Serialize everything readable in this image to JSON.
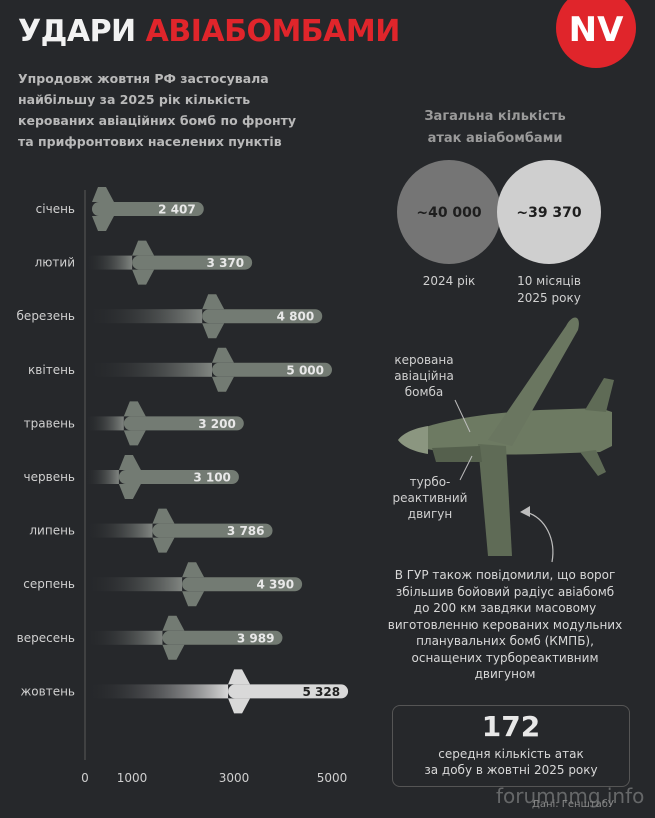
{
  "header": {
    "title_part1": "УДАРИ ",
    "title_part2": "АВІАБОМБАМИ",
    "subtitle_lines": [
      "Упродовж жовтня РФ застосувала",
      "найбільшу за 2025 рік кількість",
      "керованих авіаційних бомб по фронту",
      "та прифронтових населених пунктів"
    ],
    "logo_text": "NV",
    "logo_color": "#e0252b"
  },
  "chart_data": {
    "type": "bar",
    "orientation": "horizontal",
    "categories": [
      "січень",
      "лютий",
      "березень",
      "квітень",
      "травень",
      "червень",
      "липень",
      "серпень",
      "вересень",
      "жовтень"
    ],
    "values": [
      2407,
      3370,
      4800,
      5000,
      3200,
      3100,
      3786,
      4390,
      3989,
      5328
    ],
    "value_labels": [
      "2 407",
      "3 370",
      "4 800",
      "5 000",
      "3 200",
      "3 100",
      "3 786",
      "4 390",
      "3 989",
      "5 328"
    ],
    "x_ticks": [
      0,
      1000,
      3000,
      5000
    ],
    "xlim": [
      0,
      5000
    ],
    "highlight_category": "жовтень",
    "bar_color": "#737b73",
    "highlight_color": "#d9d9d9"
  },
  "totals": {
    "title_lines": [
      "Загальна кількість",
      "атак авіабомбами"
    ],
    "circles": [
      {
        "value": "~40 000",
        "label_lines": [
          "2024 рік"
        ],
        "color": "#757575"
      },
      {
        "value": "~39 370",
        "label_lines": [
          "10 місяців",
          "2025 року"
        ],
        "color": "#cfcfcf"
      }
    ]
  },
  "illustration": {
    "callout_bomb": [
      "керована",
      "авіаційна",
      "бомба"
    ],
    "callout_engine": [
      "турбо-",
      "реактивний",
      "двигун"
    ]
  },
  "note": {
    "lines": [
      "В ГУР також повідомили, що ворог",
      "збільшив бойовий радіус авіабомб",
      "до 200 км завдяки масовому",
      "виготовленню керованих модульних",
      "планувальних бомб (КМПБ),",
      "оснащених турбореактивним",
      "двигуном"
    ]
  },
  "stat": {
    "number": "172",
    "desc_lines": [
      "середня кількість атак",
      "за добу в жовтні 2025 року"
    ]
  },
  "credit": "Дані: ГенштабУ",
  "watermark": "forumnmg.info"
}
